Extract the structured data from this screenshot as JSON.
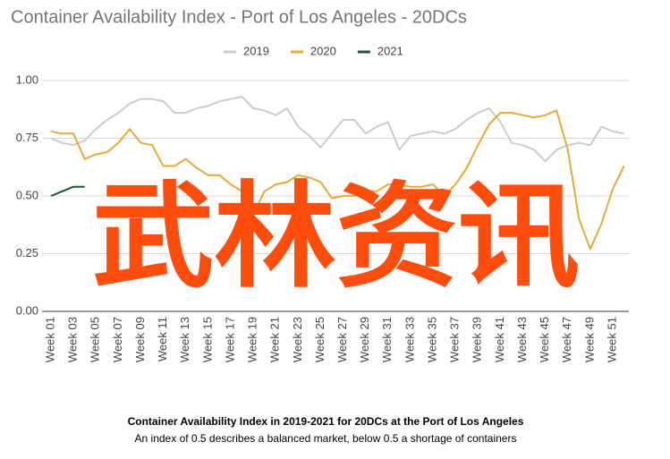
{
  "chart_data": {
    "type": "line",
    "title": "Container Availability Index - Port of Los Angeles - 20DCs",
    "categories": [
      "Week 01",
      null,
      "Week 03",
      null,
      "Week 05",
      null,
      "Week 07",
      null,
      "Week 09",
      null,
      "Week 11",
      null,
      "Week 13",
      null,
      "Week 15",
      null,
      "Week 17",
      null,
      "Week 19",
      null,
      "Week 21",
      null,
      "Week 23",
      null,
      "Week 25",
      null,
      "Week 27",
      null,
      "Week 29",
      null,
      "Week 31",
      null,
      "Week 33",
      null,
      "Week 35",
      null,
      "Week 37",
      null,
      "Week 39",
      null,
      "Week 41",
      null,
      "Week 43",
      null,
      "Week 45",
      null,
      "Week 47",
      null,
      "Week 49",
      null,
      "Week 51",
      null
    ],
    "series": [
      {
        "name": "2019",
        "color": "#cccccc",
        "values": [
          0.75,
          0.73,
          0.72,
          0.74,
          0.79,
          0.83,
          0.86,
          0.9,
          0.92,
          0.92,
          0.91,
          0.86,
          0.86,
          0.88,
          0.89,
          0.91,
          0.92,
          0.93,
          0.88,
          0.87,
          0.85,
          0.88,
          0.8,
          0.76,
          0.71,
          0.77,
          0.83,
          0.83,
          0.77,
          0.8,
          0.82,
          0.7,
          0.76,
          0.77,
          0.78,
          0.77,
          0.79,
          0.83,
          0.86,
          0.88,
          0.82,
          0.73,
          0.72,
          0.7,
          0.65,
          0.7,
          0.72,
          0.73,
          0.72,
          0.8,
          0.78,
          0.77
        ]
      },
      {
        "name": "2020",
        "color": "#e9a93a",
        "values": [
          0.78,
          0.77,
          0.77,
          0.66,
          0.68,
          0.69,
          0.73,
          0.79,
          0.73,
          0.72,
          0.63,
          0.63,
          0.66,
          0.62,
          0.59,
          0.59,
          0.55,
          0.52,
          0.42,
          0.52,
          0.55,
          0.56,
          0.59,
          0.58,
          0.56,
          0.49,
          0.5,
          0.5,
          0.52,
          0.52,
          0.55,
          0.55,
          0.54,
          0.54,
          0.55,
          0.5,
          0.55,
          0.62,
          0.72,
          0.81,
          0.86,
          0.86,
          0.85,
          0.84,
          0.85,
          0.87,
          0.7,
          0.4,
          0.27,
          0.38,
          0.53,
          0.63
        ]
      },
      {
        "name": "2021",
        "color": "#1e5631",
        "values": [
          0.5,
          0.52,
          0.54,
          0.54,
          null,
          null,
          null,
          null,
          null,
          null,
          null,
          null,
          null,
          null,
          null,
          null,
          null,
          null,
          null,
          null,
          null,
          null,
          null,
          null,
          null,
          null,
          null,
          null,
          null,
          null,
          null,
          null,
          null,
          null,
          null,
          null,
          null,
          null,
          null,
          null,
          null,
          null,
          null,
          null,
          null,
          null,
          null,
          null,
          null,
          null,
          null,
          null
        ]
      }
    ],
    "ylim": [
      0,
      1
    ],
    "yticks": [
      {
        "value": 0,
        "label": "0.00"
      },
      {
        "value": 0.25,
        "label": "0.25"
      },
      {
        "value": 0.5,
        "label": "0.50"
      },
      {
        "value": 0.75,
        "label": "0.75"
      },
      {
        "value": 1,
        "label": "1.00"
      }
    ],
    "grid": true,
    "legend": "top",
    "caption_title": "Container Availability Index in 2019-2021 for 20DCs at the Port of Los Angeles",
    "caption_text": "An index of 0.5 describes a balanced market, below 0.5 a shortage of containers",
    "watermark": "武林资讯"
  }
}
